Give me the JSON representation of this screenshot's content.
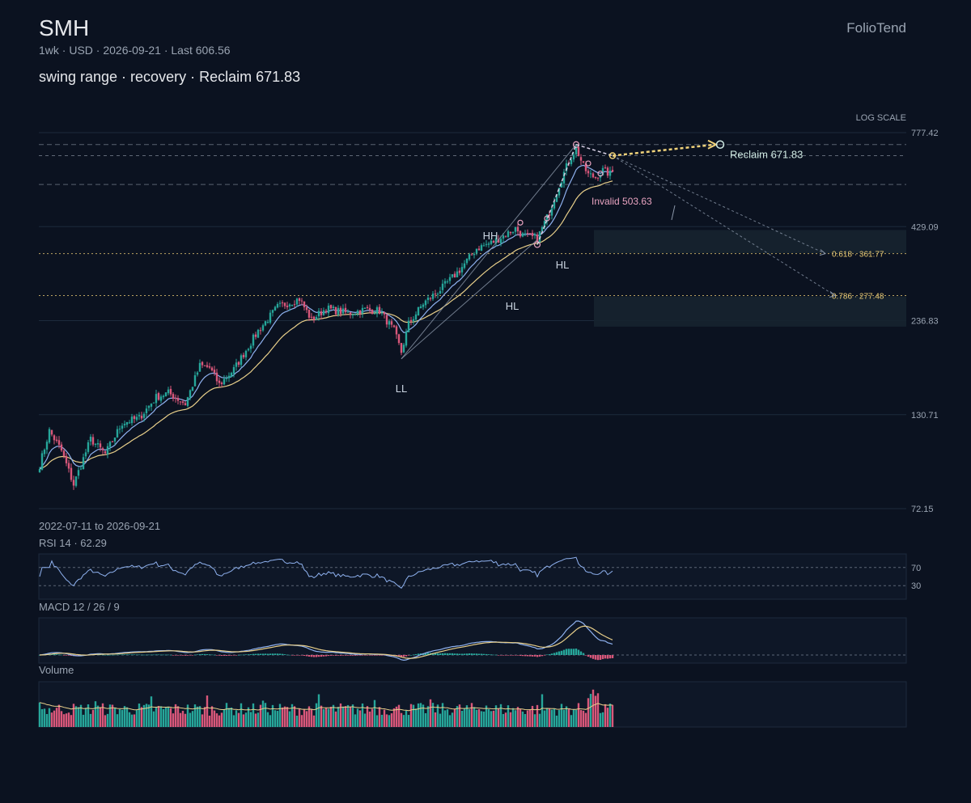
{
  "header": {
    "ticker": "SMH",
    "meta": "1wk · USD · 2026-09-21 · Last 606.56",
    "headline": "swing range · recovery · Reclaim 671.83",
    "brand": "FolioTend"
  },
  "colors": {
    "background": "#0b1220",
    "up": "#26a69a",
    "down": "#d9577a",
    "ema_fast": "#8fb2f0",
    "ema_slow": "#e8cf8a",
    "fib": "#e7c873",
    "reclaim": "#f0d27a",
    "invalid": "#e8a3c0"
  },
  "chart_data": {
    "type": "candlestick",
    "scale_label": "LOG SCALE",
    "date_range": "2022-07-11 to 2026-09-21",
    "y_ticks": [
      "777.42",
      "429.09",
      "236.83",
      "130.71",
      "72.15"
    ],
    "ylim": [
      72.15,
      777.42
    ],
    "last": 606.56,
    "levels": [
      {
        "kind": "reclaim",
        "value": 671.83,
        "label": "Reclaim 671.83"
      },
      {
        "kind": "invalid",
        "value": 503.63,
        "label": "Invalid 503.63"
      },
      {
        "kind": "fib",
        "ratio": "0.618",
        "value": 361.77,
        "label": "0.618 · 361.77"
      },
      {
        "kind": "fib",
        "ratio": "0.786",
        "value": 277.48,
        "label": "0.786 · 277.48"
      }
    ],
    "swing_labels": [
      "LL",
      "HH",
      "HL",
      "HL"
    ],
    "anchors": [
      {
        "t": 0,
        "v": 95
      },
      {
        "t": 4,
        "v": 118
      },
      {
        "t": 9,
        "v": 104
      },
      {
        "t": 14,
        "v": 84
      },
      {
        "t": 21,
        "v": 112
      },
      {
        "t": 27,
        "v": 102
      },
      {
        "t": 34,
        "v": 124
      },
      {
        "t": 41,
        "v": 128
      },
      {
        "t": 48,
        "v": 146
      },
      {
        "t": 53,
        "v": 150
      },
      {
        "t": 60,
        "v": 140
      },
      {
        "t": 66,
        "v": 178
      },
      {
        "t": 70,
        "v": 176
      },
      {
        "t": 74,
        "v": 158
      },
      {
        "t": 80,
        "v": 174
      },
      {
        "t": 90,
        "v": 222
      },
      {
        "t": 98,
        "v": 258
      },
      {
        "t": 107,
        "v": 272
      },
      {
        "t": 112,
        "v": 238
      },
      {
        "t": 118,
        "v": 256
      },
      {
        "t": 127,
        "v": 248
      },
      {
        "t": 134,
        "v": 254
      },
      {
        "t": 140,
        "v": 252
      },
      {
        "t": 146,
        "v": 222
      },
      {
        "t": 149,
        "v": 194
      },
      {
        "t": 152,
        "v": 232
      },
      {
        "t": 158,
        "v": 264
      },
      {
        "t": 166,
        "v": 292
      },
      {
        "t": 173,
        "v": 326
      },
      {
        "t": 180,
        "v": 374
      },
      {
        "t": 187,
        "v": 390
      },
      {
        "t": 196,
        "v": 424
      },
      {
        "t": 199,
        "v": 406
      },
      {
        "t": 205,
        "v": 398
      },
      {
        "t": 210,
        "v": 470
      },
      {
        "t": 214,
        "v": 560
      },
      {
        "t": 218,
        "v": 650
      },
      {
        "t": 221,
        "v": 705
      },
      {
        "t": 224,
        "v": 628
      },
      {
        "t": 226,
        "v": 596
      },
      {
        "t": 229,
        "v": 586
      },
      {
        "t": 232,
        "v": 612
      },
      {
        "t": 235,
        "v": 598
      },
      {
        "t": 236,
        "v": 606.56
      }
    ],
    "rsi": {
      "label": "RSI 14 · 62.29",
      "period": 14,
      "value": 62.29,
      "levels": [
        "70",
        "30"
      ]
    },
    "macd": {
      "label": "MACD 12 / 26 / 9",
      "fast": 12,
      "slow": 26,
      "signal": 9
    },
    "volume": {
      "label": "Volume"
    }
  }
}
